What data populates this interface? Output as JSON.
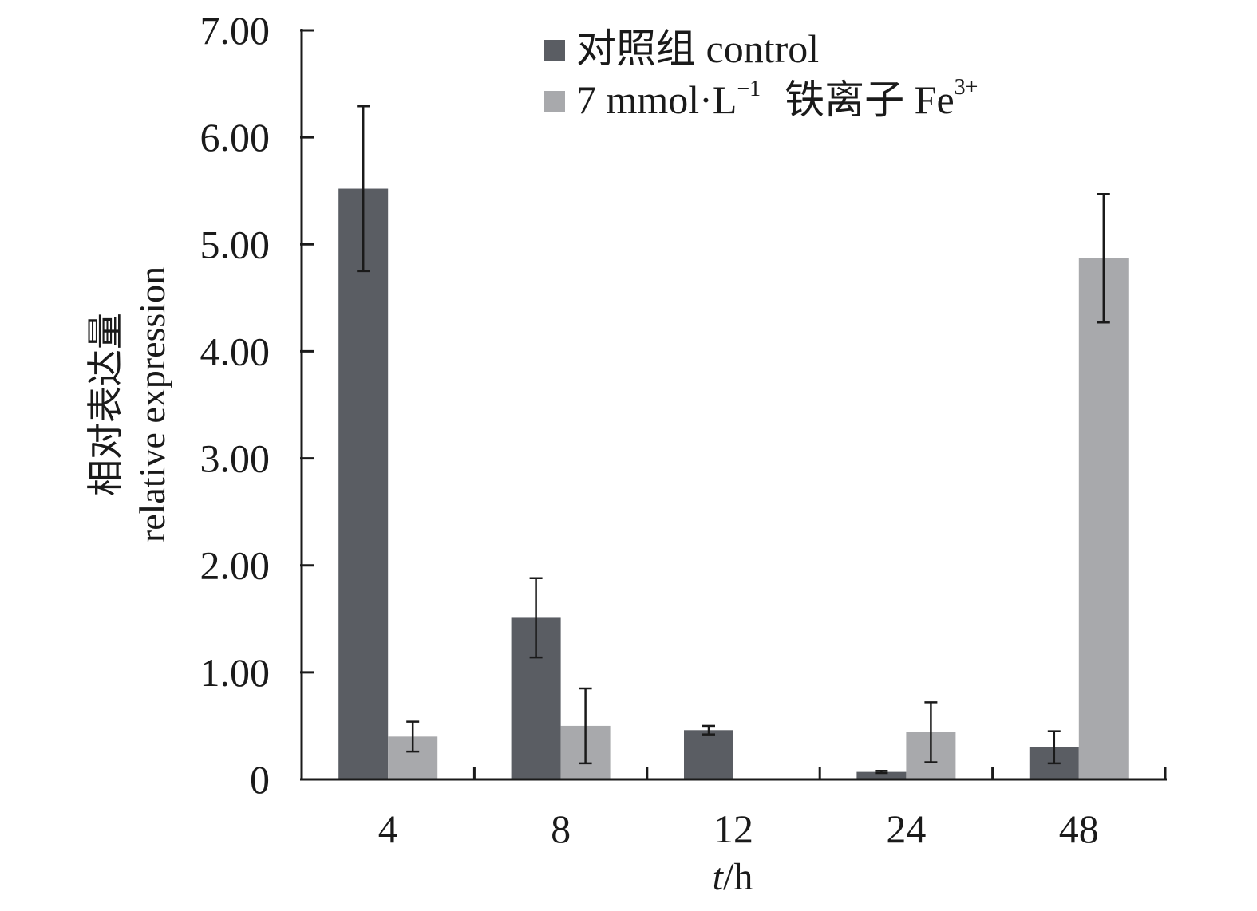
{
  "chart_data": {
    "type": "bar",
    "categories": [
      "4",
      "8",
      "12",
      "24",
      "48"
    ],
    "series": [
      {
        "name": "对照组 control",
        "color": "#5a5d63",
        "values": [
          5.52,
          1.51,
          0.46,
          0.07,
          0.3
        ],
        "errors": [
          0.77,
          0.37,
          0.04,
          0.01,
          0.15
        ]
      },
      {
        "name_main": "7 mmol·L",
        "name_sup": "−1",
        "name_cn": "铁离子 Fe",
        "name_sup2": "3+",
        "color": "#a8a9ac",
        "values": [
          0.4,
          0.5,
          0.01,
          0.44,
          4.87
        ],
        "errors": [
          0.14,
          0.35,
          0.0,
          0.28,
          0.6
        ]
      }
    ],
    "ylim": [
      0,
      7
    ],
    "yticks": [
      "0",
      "1.00",
      "2.00",
      "3.00",
      "4.00",
      "5.00",
      "6.00",
      "7.00"
    ],
    "ylabel_cn": "相对表达量",
    "ylabel_en": "relative expression",
    "xlabel_italic": "t",
    "xlabel_rest": "/h",
    "grid": false,
    "legend_position": "top-center"
  }
}
